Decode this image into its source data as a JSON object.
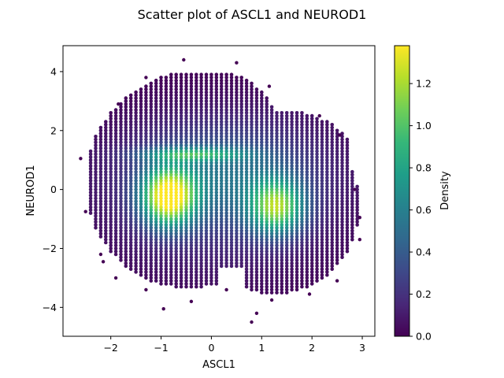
{
  "chart_data": {
    "type": "scatter",
    "title": "Scatter plot of ASCL1 and NEUROD1",
    "xlabel": "ASCL1",
    "ylabel": "NEUROD1",
    "xlim": [
      -2.95,
      3.25
    ],
    "ylim": [
      -4.98,
      4.88
    ],
    "xticks": [
      -2,
      -1,
      0,
      1,
      2,
      3
    ],
    "xtick_labels": [
      "−2",
      "−1",
      "0",
      "1",
      "2",
      "3"
    ],
    "yticks": [
      -4,
      -2,
      0,
      2,
      4
    ],
    "ytick_labels": [
      "−4",
      "−2",
      "0",
      "2",
      "4"
    ],
    "colorbar": {
      "label": "Density",
      "colormap": "viridis",
      "range": [
        0.0,
        1.38
      ],
      "ticks": [
        0.0,
        0.2,
        0.4,
        0.6,
        0.8,
        1.0,
        1.2
      ],
      "tick_labels": [
        "0.0",
        "0.2",
        "0.4",
        "0.6",
        "0.8",
        "1.0",
        "1.2"
      ]
    },
    "density_peaks": [
      {
        "x": -0.85,
        "y": -0.25,
        "density": 1.35
      },
      {
        "x": 1.3,
        "y": -0.6,
        "density": 1.05
      },
      {
        "x": -0.4,
        "y": 1.2,
        "density": 1.2
      }
    ],
    "outer_points": [
      {
        "x": -2.6,
        "y": 1.05
      },
      {
        "x": -2.5,
        "y": -0.75
      },
      {
        "x": -2.2,
        "y": -2.2
      },
      {
        "x": -2.15,
        "y": -2.45
      },
      {
        "x": -1.9,
        "y": -3.0
      },
      {
        "x": -1.3,
        "y": -3.4
      },
      {
        "x": -0.95,
        "y": -4.05
      },
      {
        "x": -0.4,
        "y": -3.8
      },
      {
        "x": -0.55,
        "y": 4.4
      },
      {
        "x": -1.3,
        "y": 3.8
      },
      {
        "x": 0.5,
        "y": 4.3
      },
      {
        "x": 0.8,
        "y": -4.5
      },
      {
        "x": 0.9,
        "y": -4.2
      },
      {
        "x": 1.2,
        "y": -3.75
      },
      {
        "x": 1.95,
        "y": -3.55
      },
      {
        "x": 2.5,
        "y": -3.1
      },
      {
        "x": 2.95,
        "y": -1.7
      },
      {
        "x": 2.55,
        "y": 1.85
      },
      {
        "x": 2.15,
        "y": 2.5
      },
      {
        "x": 1.15,
        "y": 3.5
      },
      {
        "x": 2.95,
        "y": -0.95
      },
      {
        "x": 2.85,
        "y": 0.0
      },
      {
        "x": -1.85,
        "y": 2.9
      },
      {
        "x": 0.3,
        "y": -3.4
      }
    ],
    "colors": {
      "low": "#440154",
      "mid": "#21918c",
      "high": "#fde725"
    }
  }
}
